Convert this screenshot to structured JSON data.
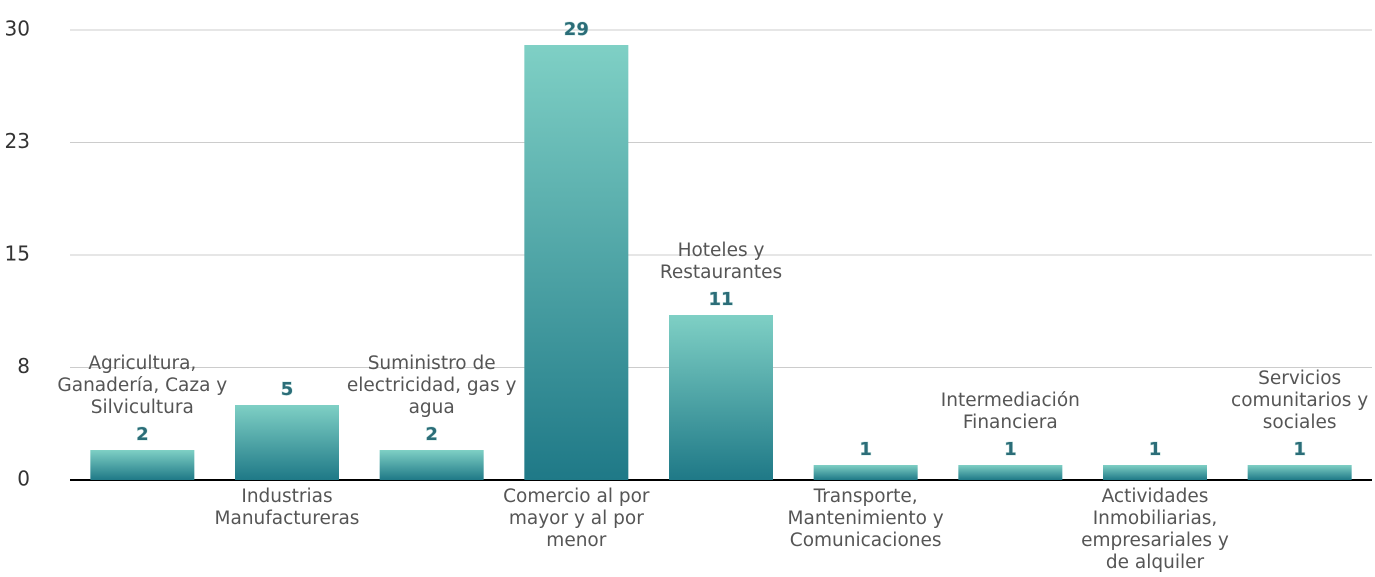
{
  "chart_data": {
    "type": "bar",
    "categories": [
      "Agricultura, Ganadería, Caza y Silvicultura",
      "Industrias Manufactureras",
      "Suministro de electricidad, gas y agua",
      "Comercio al por mayor y al por menor",
      "Hoteles y Restaurantes",
      "Transporte, Mantenimiento y Comunicaciones",
      "Intermediación Financiera",
      "Actividades Inmobiliarias, empresariales y de alquiler",
      "Servicios comunitarios y sociales"
    ],
    "values": [
      2,
      5,
      2,
      29,
      11,
      1,
      1,
      1,
      1
    ],
    "color": [
      "#7fd0c5",
      "#1f7987"
    ],
    "ylim": [
      0,
      30
    ],
    "yticks": [
      0,
      {
        "value": 7.5,
        "label": "8"
      },
      15,
      {
        "value": 22.5,
        "label": "23"
      },
      30
    ],
    "grid": true
  }
}
